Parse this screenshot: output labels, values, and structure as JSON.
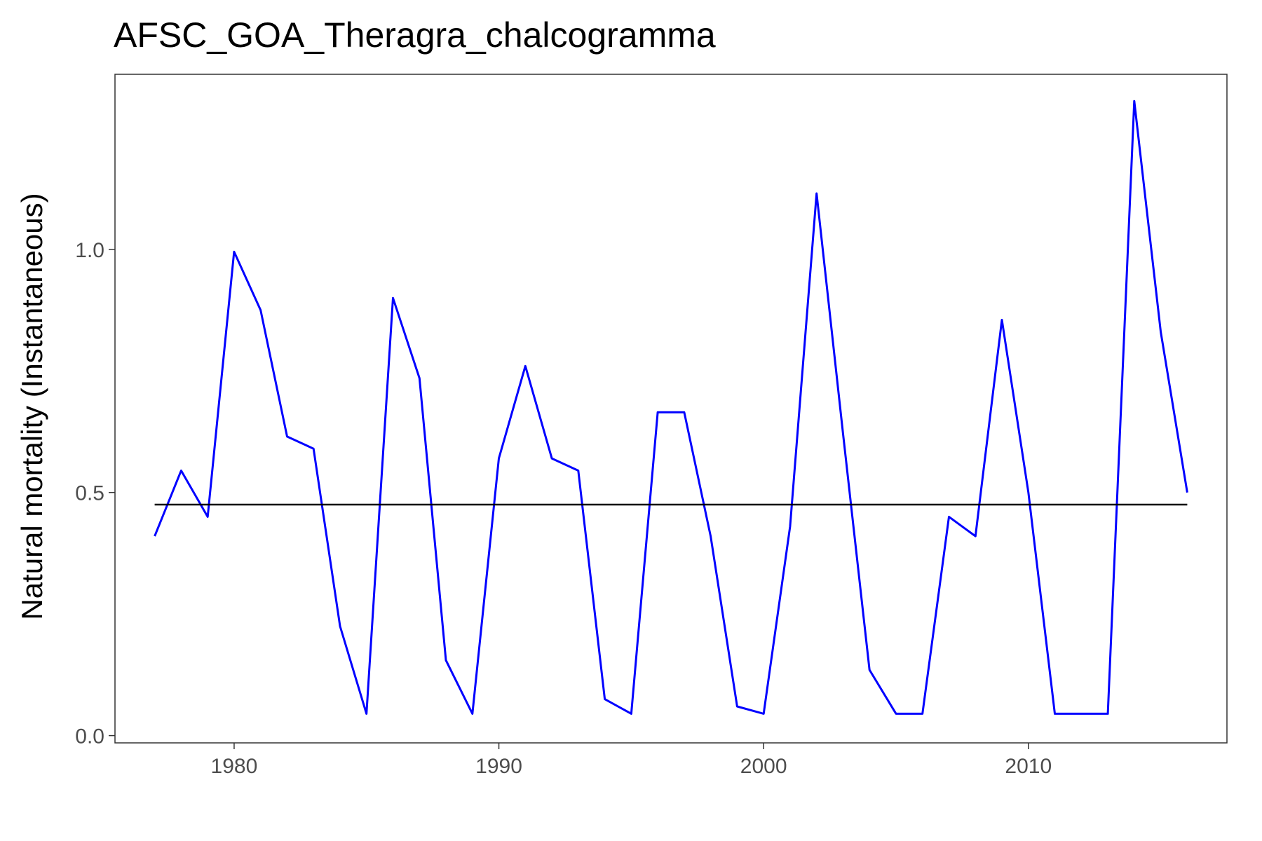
{
  "chart_data": {
    "type": "line",
    "title": "AFSC_GOA_Theragra_chalcogramma",
    "xlabel": "",
    "ylabel": "Natural mortality (Instantaneous)",
    "xlim": [
      1975.5,
      2017.5
    ],
    "ylim": [
      -0.015,
      1.36
    ],
    "xticks": [
      1980,
      1990,
      2000,
      2010
    ],
    "yticks": [
      0.0,
      0.5,
      1.0
    ],
    "ytick_labels": [
      "0.0",
      "0.5",
      "1.0"
    ],
    "grid": false,
    "legend": "none",
    "x": [
      1977,
      1978,
      1979,
      1980,
      1981,
      1982,
      1983,
      1984,
      1985,
      1986,
      1987,
      1988,
      1989,
      1990,
      1991,
      1992,
      1993,
      1994,
      1995,
      1996,
      1997,
      1998,
      1999,
      2000,
      2001,
      2002,
      2003,
      2004,
      2005,
      2006,
      2007,
      2008,
      2009,
      2010,
      2011,
      2012,
      2013,
      2014,
      2015,
      2016
    ],
    "series": [
      {
        "color": "#0000ff",
        "values": [
          0.41,
          0.545,
          0.45,
          0.995,
          0.875,
          0.615,
          0.59,
          0.225,
          0.045,
          0.9,
          0.735,
          0.155,
          0.045,
          0.57,
          0.76,
          0.57,
          0.545,
          0.075,
          0.045,
          0.665,
          0.665,
          0.41,
          0.06,
          0.045,
          0.43,
          1.115,
          0.62,
          0.135,
          0.045,
          0.045,
          0.45,
          0.41,
          0.855,
          0.5,
          0.045,
          0.045,
          0.045,
          1.305,
          0.83,
          0.5
        ]
      },
      {
        "color": "#000000",
        "values": [
          0.475,
          0.475,
          0.475,
          0.475,
          0.475,
          0.475,
          0.475,
          0.475,
          0.475,
          0.475,
          0.475,
          0.475,
          0.475,
          0.475,
          0.475,
          0.475,
          0.475,
          0.475,
          0.475,
          0.475,
          0.475,
          0.475,
          0.475,
          0.475,
          0.475,
          0.475,
          0.475,
          0.475,
          0.475,
          0.475,
          0.475,
          0.475,
          0.475,
          0.475,
          0.475,
          0.475,
          0.475,
          0.475,
          0.475,
          0.475
        ]
      }
    ]
  }
}
